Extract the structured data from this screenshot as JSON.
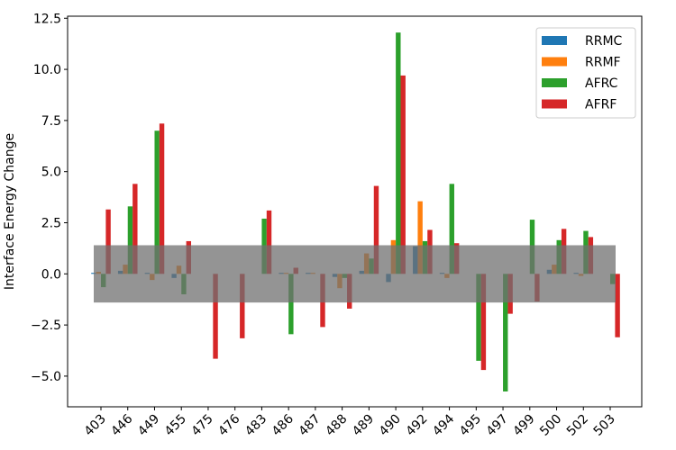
{
  "chart_data": {
    "type": "bar",
    "title": "",
    "xlabel": "",
    "ylabel": "Interface Energy Change",
    "ylim": [
      -6.5,
      12.6
    ],
    "yticks": [
      -5.0,
      -2.5,
      0.0,
      2.5,
      5.0,
      7.5,
      10.0,
      12.5
    ],
    "ytick_labels": [
      "−5.0",
      "−2.5",
      "0.0",
      "2.5",
      "5.0",
      "7.5",
      "10.0",
      "12.5"
    ],
    "categories": [
      "403",
      "446",
      "449",
      "455",
      "475",
      "476",
      "483",
      "486",
      "487",
      "488",
      "489",
      "490",
      "492",
      "494",
      "495",
      "497",
      "499",
      "500",
      "502",
      "503"
    ],
    "series": [
      {
        "name": "RRMC",
        "color": "#1f77b4",
        "values": [
          0.05,
          0.15,
          0.05,
          -0.2,
          0.0,
          0.0,
          0.0,
          0.05,
          0.05,
          -0.15,
          0.15,
          -0.4,
          1.35,
          0.05,
          0.0,
          0.0,
          0.0,
          0.2,
          0.05,
          0.0
        ]
      },
      {
        "name": "RRMF",
        "color": "#ff7f0e",
        "values": [
          0.1,
          0.45,
          -0.3,
          0.4,
          0.0,
          0.0,
          0.0,
          0.05,
          0.05,
          -0.7,
          1.0,
          1.65,
          3.55,
          -0.2,
          0.0,
          0.0,
          0.0,
          0.45,
          -0.1,
          0.0
        ]
      },
      {
        "name": "AFRC",
        "color": "#2ca02c",
        "values": [
          -0.65,
          3.3,
          7.0,
          -1.0,
          0.0,
          0.0,
          2.7,
          -2.95,
          0.0,
          -0.2,
          0.75,
          11.8,
          1.6,
          4.4,
          -4.25,
          -5.75,
          2.65,
          1.65,
          2.1,
          -0.5
        ]
      },
      {
        "name": "AFRF",
        "color": "#d62728",
        "values": [
          3.15,
          4.4,
          7.35,
          1.6,
          -4.15,
          -3.15,
          3.1,
          0.3,
          -2.6,
          -1.7,
          4.3,
          9.7,
          2.15,
          1.5,
          -4.7,
          -1.95,
          -1.35,
          2.2,
          1.8,
          -3.1
        ]
      }
    ],
    "band": {
      "y_low": -1.4,
      "y_high": 1.4,
      "color": "#707070"
    },
    "legend_position": "top-right",
    "grid": false
  }
}
